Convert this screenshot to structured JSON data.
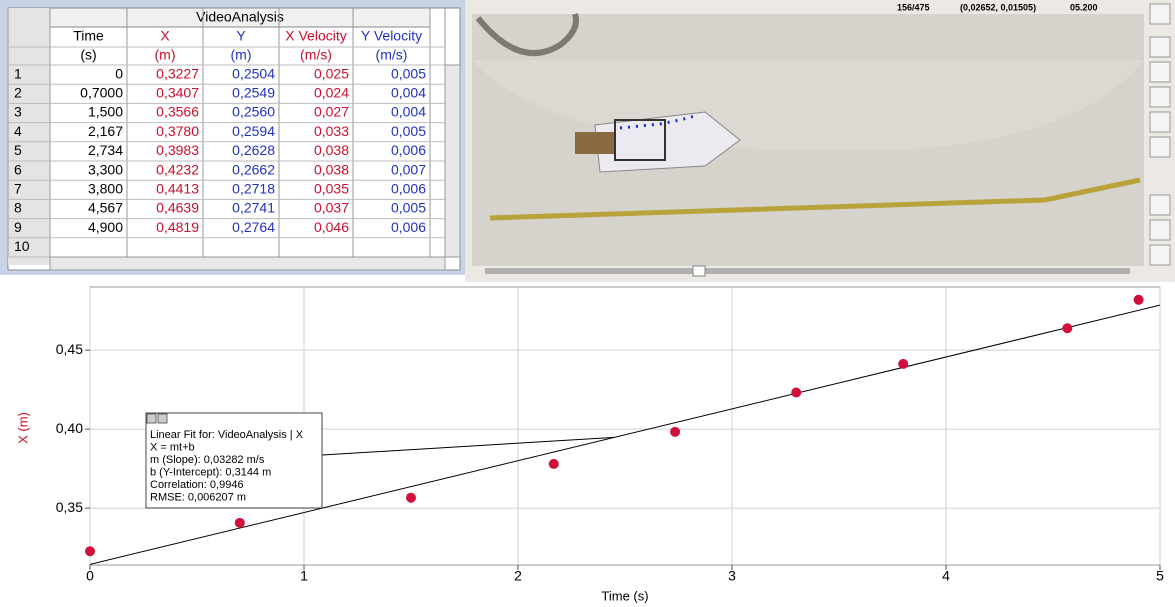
{
  "table": {
    "title": "VideoAnalysis",
    "columns": [
      {
        "name": "Time",
        "unit": "(s)",
        "color": "#000000"
      },
      {
        "name": "X",
        "unit": "(m)",
        "color": "#c8102e"
      },
      {
        "name": "Y",
        "unit": "(m)",
        "color": "#2232c0"
      },
      {
        "name": "X Velocity",
        "unit": "(m/s)",
        "color": "#c8102e"
      },
      {
        "name": "Y Velocity",
        "unit": "(m/s)",
        "color": "#2232c0"
      }
    ],
    "rows": [
      {
        "label": "1",
        "cells": [
          "0",
          "0,3227",
          "0,2504",
          "0,025",
          "0,005"
        ]
      },
      {
        "label": "2",
        "cells": [
          "0,7000",
          "0,3407",
          "0,2549",
          "0,024",
          "0,004"
        ]
      },
      {
        "label": "3",
        "cells": [
          "1,500",
          "0,3566",
          "0,2560",
          "0,027",
          "0,004"
        ]
      },
      {
        "label": "4",
        "cells": [
          "2,167",
          "0,3780",
          "0,2594",
          "0,033",
          "0,005"
        ]
      },
      {
        "label": "5",
        "cells": [
          "2,734",
          "0,3983",
          "0,2628",
          "0,038",
          "0,006"
        ]
      },
      {
        "label": "6",
        "cells": [
          "3,300",
          "0,4232",
          "0,2662",
          "0,038",
          "0,007"
        ]
      },
      {
        "label": "7",
        "cells": [
          "3,800",
          "0,4413",
          "0,2718",
          "0,035",
          "0,006"
        ]
      },
      {
        "label": "8",
        "cells": [
          "4,567",
          "0,4639",
          "0,2741",
          "0,037",
          "0,005"
        ]
      },
      {
        "label": "9",
        "cells": [
          "4,900",
          "0,4819",
          "0,2764",
          "0,046",
          "0,006"
        ]
      },
      {
        "label": "10",
        "cells": []
      }
    ]
  },
  "video": {
    "frame": "156/475",
    "coords": "(0,02652, 0,01505)",
    "time": "05.200"
  },
  "chart_data": {
    "type": "scatter",
    "x": [
      0,
      0.7,
      1.5,
      2.167,
      2.734,
      3.3,
      3.8,
      4.567,
      4.9
    ],
    "series": [
      {
        "color": "#d0103a",
        "values": [
          0.3227,
          0.3407,
          0.3566,
          0.378,
          0.3983,
          0.4232,
          0.4413,
          0.4639,
          0.4819
        ]
      }
    ],
    "xlim": [
      0,
      5
    ],
    "ylim": [
      0.314,
      0.49
    ],
    "xticks": [
      0,
      1,
      2,
      3,
      4,
      5
    ],
    "yticks": [
      {
        "value": 0.35,
        "label": "0,35"
      },
      {
        "value": 0.4,
        "label": "0,40"
      },
      {
        "value": 0.45,
        "label": "0,45"
      }
    ],
    "xlabel": "Time (s)",
    "ylabel": "X (m)",
    "grid": true,
    "fit": {
      "slope": 0.03282,
      "intercept": 0.3144,
      "lines": [
        "Linear Fit for: VideoAnalysis | X",
        "X = mt+b",
        "m (Slope): 0,03282 m/s",
        "b (Y-Intercept): 0,3144 m",
        "Correlation: 0,9946",
        "RMSE: 0,006207 m"
      ]
    }
  }
}
